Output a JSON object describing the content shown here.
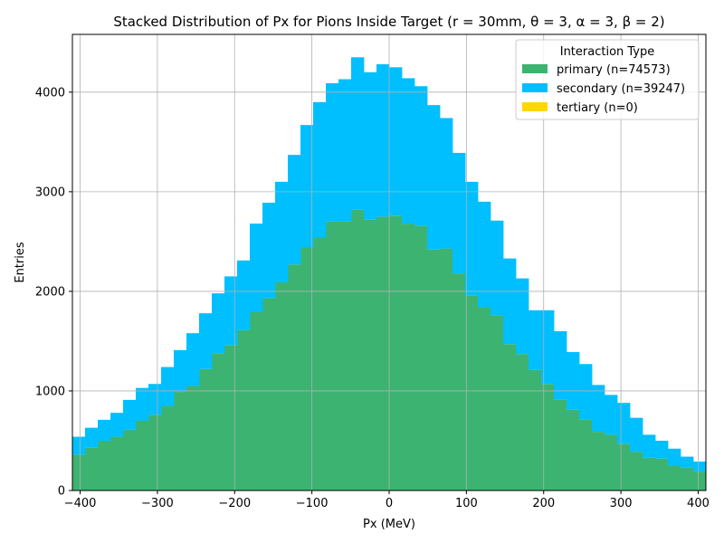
{
  "chart_data": {
    "type": "bar",
    "stacked": true,
    "title": "Stacked Distribution of Px for Pions Inside Target (r = 30mm, θ = 3, α = 3, β = 2)",
    "xlabel": "Px (MeV)",
    "ylabel": "Entries",
    "xlim": [
      -410,
      410
    ],
    "ylim": [
      0,
      4580
    ],
    "xticks": [
      -400,
      -300,
      -200,
      -100,
      0,
      100,
      200,
      300,
      400
    ],
    "yticks": [
      0,
      1000,
      2000,
      3000,
      4000
    ],
    "grid": true,
    "bin_edges": [
      -410,
      -393.6,
      -377.2,
      -360.8,
      -344.4,
      -328,
      -311.6,
      -295.2,
      -278.8,
      -262.4,
      -246,
      -229.6,
      -213.2,
      -196.8,
      -180.4,
      -164,
      -147.6,
      -131.2,
      -114.8,
      -98.4,
      -82,
      -65.6,
      -49.2,
      -32.8,
      -16.4,
      0,
      16.4,
      32.8,
      49.2,
      65.6,
      82,
      98.4,
      114.8,
      131.2,
      147.6,
      164,
      180.4,
      196.8,
      213.2,
      229.6,
      246,
      262.4,
      278.8,
      295.2,
      311.6,
      328,
      344.4,
      360.8,
      377.2,
      393.6,
      410
    ],
    "series": [
      {
        "name": "primary (n=74573)",
        "color": "#3cb371",
        "values": [
          360,
          430,
          500,
          540,
          610,
          700,
          760,
          850,
          990,
          1050,
          1220,
          1380,
          1460,
          1610,
          1790,
          1930,
          2090,
          2270,
          2440,
          2540,
          2700,
          2700,
          2820,
          2720,
          2750,
          2760,
          2680,
          2660,
          2420,
          2430,
          2180,
          1960,
          1840,
          1760,
          1470,
          1370,
          1210,
          1070,
          910,
          810,
          710,
          590,
          560,
          470,
          390,
          330,
          320,
          250,
          230,
          190
        ]
      },
      {
        "name": "secondary (n=39247)",
        "color": "#00bfff",
        "values": [
          180,
          200,
          210,
          240,
          300,
          330,
          310,
          390,
          420,
          530,
          560,
          600,
          690,
          700,
          890,
          960,
          1010,
          1100,
          1230,
          1360,
          1390,
          1430,
          1530,
          1480,
          1530,
          1490,
          1460,
          1400,
          1450,
          1310,
          1210,
          1140,
          1060,
          950,
          860,
          760,
          600,
          740,
          690,
          580,
          560,
          470,
          400,
          410,
          340,
          230,
          180,
          170,
          110,
          100
        ]
      },
      {
        "name": "tertiary (n=0)",
        "color": "#ffd700",
        "values": [
          0,
          0,
          0,
          0,
          0,
          0,
          0,
          0,
          0,
          0,
          0,
          0,
          0,
          0,
          0,
          0,
          0,
          0,
          0,
          0,
          0,
          0,
          0,
          0,
          0,
          0,
          0,
          0,
          0,
          0,
          0,
          0,
          0,
          0,
          0,
          0,
          0,
          0,
          0,
          0,
          0,
          0,
          0,
          0,
          0,
          0,
          0,
          0,
          0,
          0
        ]
      }
    ],
    "legend": {
      "title": "Interaction Type",
      "location": "top-right"
    }
  }
}
